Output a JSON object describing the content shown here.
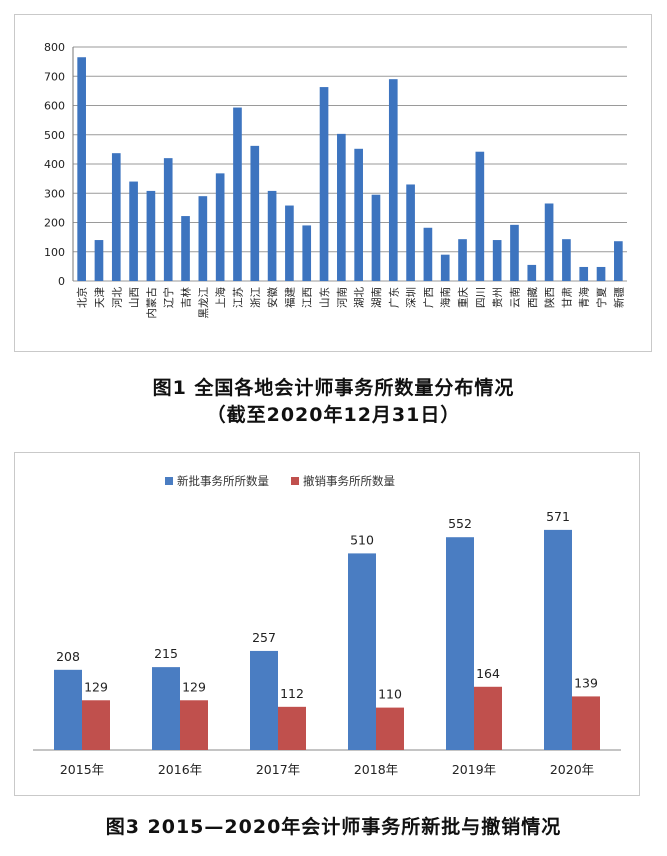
{
  "chart_data": [
    {
      "type": "bar",
      "categories": [
        "北京",
        "天津",
        "河北",
        "山西",
        "内蒙古",
        "辽宁",
        "吉林",
        "黑龙江",
        "上海",
        "江苏",
        "浙江",
        "安徽",
        "福建",
        "江西",
        "山东",
        "河南",
        "湖北",
        "湖南",
        "广东",
        "深圳",
        "广西",
        "海南",
        "重庆",
        "四川",
        "贵州",
        "云南",
        "西藏",
        "陕西",
        "甘肃",
        "青海",
        "宁夏",
        "新疆"
      ],
      "values": [
        765,
        140,
        437,
        340,
        308,
        420,
        222,
        290,
        368,
        593,
        462,
        308,
        258,
        190,
        663,
        503,
        452,
        295,
        690,
        330,
        182,
        90,
        143,
        442,
        140,
        192,
        55,
        265,
        143,
        48,
        48,
        136
      ],
      "ylim": [
        0,
        800
      ],
      "yticks": [
        0,
        100,
        200,
        300,
        400,
        500,
        600,
        700,
        800
      ],
      "color": "#3d74bf",
      "grid": true
    },
    {
      "type": "bar",
      "categories": [
        "2015年",
        "2016年",
        "2017年",
        "2018年",
        "2019年",
        "2020年"
      ],
      "series": [
        {
          "name": "新批事务所所数量",
          "values": [
            208,
            215,
            257,
            510,
            552,
            571
          ],
          "color": "#4a7dc2"
        },
        {
          "name": "撤销事务所所数量",
          "values": [
            129,
            129,
            112,
            110,
            164,
            139
          ],
          "color": "#c0504d"
        }
      ],
      "ylim": [
        0,
        620
      ],
      "legend": "top",
      "grid": false
    }
  ],
  "captions": {
    "fig1_line1": "图1  全国各地会计师事务所数量分布情况",
    "fig1_line2": "（截至2020年12月31日）",
    "fig3": "图3  2015—2020年会计师事务所新批与撤销情况"
  }
}
